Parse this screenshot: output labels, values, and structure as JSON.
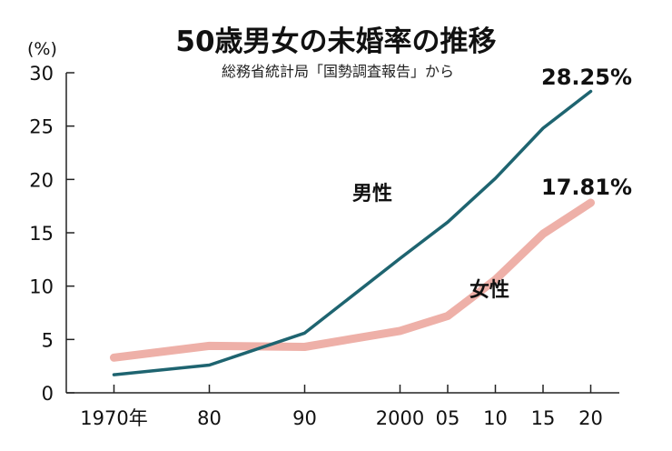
{
  "chart_data": {
    "type": "line",
    "title": "50歳男女の未婚率の推移",
    "subtitle": "総務省統計局「国勢調査報告」から",
    "ylabel": "(%)",
    "xlabel": "",
    "ylim": [
      0,
      30
    ],
    "yticks": [
      "0",
      "5",
      "10",
      "15",
      "20",
      "25",
      "30"
    ],
    "categories": [
      "1970年",
      "80",
      "90",
      "2000",
      "05",
      "10",
      "15",
      "20"
    ],
    "x": [
      1970,
      1980,
      1990,
      2000,
      2005,
      2010,
      2015,
      2020
    ],
    "xlim": [
      1965,
      2023
    ],
    "grid": false,
    "series": [
      {
        "name": "男性",
        "color": "#1e6470",
        "values": [
          1.7,
          2.6,
          5.6,
          12.6,
          16.0,
          20.1,
          24.8,
          28.25
        ],
        "end_label": "28.25%"
      },
      {
        "name": "女性",
        "color": "#eeb0a8",
        "values": [
          3.3,
          4.4,
          4.3,
          5.8,
          7.2,
          10.6,
          14.9,
          17.81
        ],
        "end_label": "17.81%"
      }
    ]
  }
}
